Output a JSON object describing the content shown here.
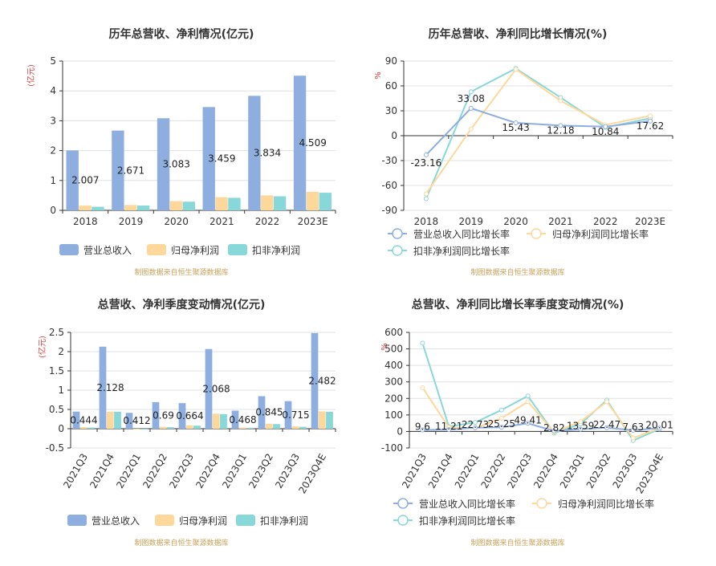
{
  "colors": {
    "revenue": "#8eaee0",
    "net_profit": "#fdd89a",
    "deducted_profit": "#88d7d9",
    "axis": "#333333",
    "grid": "#e0e0e0",
    "unit_label": "#e03c3c",
    "source_text": "#c9a15a"
  },
  "chart_data": [
    {
      "id": "annual_amounts",
      "type": "bar",
      "title": "历年总营收、净利情况(亿元)",
      "ylabel": "(亿元)",
      "categories": [
        "2018",
        "2019",
        "2020",
        "2021",
        "2022",
        "2023E"
      ],
      "ylim": [
        0,
        5
      ],
      "yticks": [
        0,
        1,
        2,
        3,
        4,
        5
      ],
      "ytick_labels": [
        "0",
        "1",
        "2",
        "3",
        "4",
        "5"
      ],
      "grid": true,
      "series": [
        {
          "name": "营业总收入",
          "values": [
            2.007,
            2.671,
            3.083,
            3.459,
            3.834,
            4.509
          ],
          "data_labels": [
            "2.007",
            "2.671",
            "3.083",
            "3.459",
            "3.834",
            "4.509"
          ]
        },
        {
          "name": "归母净利润",
          "values": [
            0.16,
            0.18,
            0.31,
            0.44,
            0.5,
            0.62
          ]
        },
        {
          "name": "扣非净利润",
          "values": [
            0.12,
            0.16,
            0.29,
            0.42,
            0.47,
            0.59
          ]
        }
      ],
      "legend_position": "bottom",
      "source": "制图数据来自恒生聚源数据库"
    },
    {
      "id": "annual_growth",
      "type": "line",
      "title": "历年总营收、净利同比增长情况(%)",
      "ylabel": "%",
      "categories": [
        "2018",
        "2019",
        "2020",
        "2021",
        "2022",
        "2023E"
      ],
      "ylim": [
        -90,
        90
      ],
      "yticks": [
        -90,
        -60,
        -30,
        0,
        30,
        60,
        90
      ],
      "ytick_labels": [
        "-90",
        "-60",
        "-30",
        "0",
        "30",
        "60",
        "90"
      ],
      "grid": true,
      "series": [
        {
          "name": "营业总收入同比增长率",
          "values": [
            -23.16,
            33.08,
            15.43,
            12.18,
            10.84,
            17.62
          ],
          "data_labels": [
            "-23.16",
            "33.08",
            "15.43",
            "12.18",
            "10.84",
            "17.62"
          ]
        },
        {
          "name": "归母净利润同比增长率",
          "values": [
            -70,
            8,
            80,
            42,
            13,
            24
          ]
        },
        {
          "name": "扣非净利润同比增长率",
          "values": [
            -76,
            53,
            81,
            46,
            10,
            21
          ]
        }
      ],
      "legend_position": "bottom",
      "source": "制图数据来自恒生聚源数据库"
    },
    {
      "id": "quarterly_amounts",
      "type": "bar",
      "title": "总营收、净利季度变动情况(亿元)",
      "ylabel": "(亿元)",
      "categories": [
        "2021Q3",
        "2021Q4",
        "2022Q1",
        "2022Q2",
        "2022Q3",
        "2022Q4",
        "2023Q1",
        "2023Q2",
        "2023Q3",
        "2023Q4E"
      ],
      "ylim": [
        -0.5,
        2.5
      ],
      "yticks": [
        -0.5,
        0,
        0.5,
        1,
        1.5,
        2,
        2.5
      ],
      "ytick_labels": [
        "-0.5",
        "0",
        "0.5",
        "1",
        "1.5",
        "2",
        "2.5"
      ],
      "grid": true,
      "series": [
        {
          "name": "营业总收入",
          "values": [
            0.444,
            2.128,
            0.412,
            0.69,
            0.664,
            2.068,
            0.468,
            0.845,
            0.715,
            2.482
          ],
          "data_labels": [
            "0.444",
            "2.128",
            "0.412",
            "0.69",
            "0.664",
            "2.068",
            "0.468",
            "0.845",
            "0.715",
            "2.482"
          ]
        },
        {
          "name": "归母净利润",
          "values": [
            0.04,
            0.44,
            -0.02,
            0.05,
            0.09,
            0.39,
            0.03,
            0.13,
            0.06,
            0.45
          ]
        },
        {
          "name": "扣非净利润",
          "values": [
            0.03,
            0.44,
            -0.02,
            0.04,
            0.08,
            0.38,
            0.02,
            0.12,
            0.05,
            0.44
          ]
        }
      ],
      "legend_position": "bottom",
      "source": "制图数据来自恒生聚源数据库"
    },
    {
      "id": "quarterly_growth",
      "type": "line",
      "title": "总营收、净利同比增长率季度变动情况(%)",
      "ylabel": "%",
      "categories": [
        "2021Q3",
        "2021Q4",
        "2022Q1",
        "2022Q2",
        "2022Q3",
        "2022Q4",
        "2023Q1",
        "2023Q2",
        "2023Q3",
        "2023Q4E"
      ],
      "ylim": [
        -100,
        600
      ],
      "yticks": [
        -100,
        0,
        100,
        200,
        300,
        400,
        500,
        600
      ],
      "ytick_labels": [
        "-100",
        "0",
        "100",
        "200",
        "300",
        "400",
        "500",
        "600"
      ],
      "grid": true,
      "series": [
        {
          "name": "营业总收入同比增长率",
          "values": [
            9.6,
            11.21,
            22.73,
            25.25,
            49.41,
            2.82,
            13.59,
            22.47,
            7.63,
            20.01
          ],
          "data_labels": [
            "9.6",
            "11.21",
            "22.73",
            "25.25",
            "49.41",
            "2.82",
            "13.59",
            "22.47",
            "7.63",
            "20.01"
          ]
        },
        {
          "name": "归母净利润同比增长率",
          "values": [
            265,
            25,
            20,
            80,
            180,
            -5,
            60,
            180,
            -40,
            20
          ]
        },
        {
          "name": "扣非净利润同比增长率",
          "values": [
            535,
            30,
            55,
            130,
            215,
            -10,
            45,
            190,
            -55,
            15
          ]
        }
      ],
      "legend_position": "bottom",
      "source": "制图数据来自恒生聚源数据库"
    }
  ]
}
